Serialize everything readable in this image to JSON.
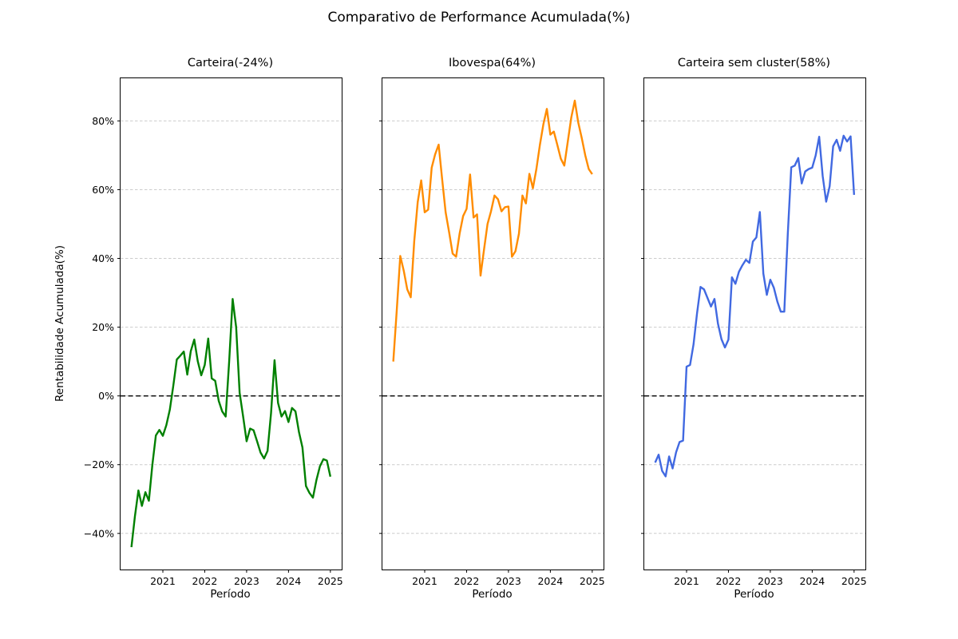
{
  "figure": {
    "title": "Comparativo de Performance Acumulada(%)",
    "ylabel": "Rentabilidade Acumulada(%)",
    "xlabel": "Período",
    "background_color": "#ffffff",
    "gridline_color": "#cccccc",
    "zero_line_color": "#000000"
  },
  "chart_data": {
    "type": "line",
    "layout": "3 horizontal subplots, shared y-axis",
    "x_frequency": "monthly",
    "x_start": "2020-04",
    "x_end": "2025-01",
    "x_tick_labels": [
      "2021",
      "2022",
      "2023",
      "2024",
      "2025"
    ],
    "x_ticks_years": [
      2021,
      2022,
      2023,
      2024,
      2025
    ],
    "y_tick_labels": [
      "80%",
      "60%",
      "40%",
      "20%",
      "0%",
      "−20%",
      "−40%"
    ],
    "y_ticks": [
      80,
      60,
      40,
      20,
      0,
      -20,
      -40
    ],
    "ylim": [
      -50.5,
      92.4
    ],
    "xlim_years": [
      2019.99,
      2025.27
    ],
    "x_start_year_frac": 2020.25,
    "grid": true,
    "zero_line": "black dashed horizontal line at 0%",
    "series": [
      {
        "name": "Carteira",
        "subplot_title": "Carteira(-24%)",
        "final_return_pct": -24,
        "color": "#008000",
        "values": [
          -44,
          -35,
          -27.5,
          -32,
          -28,
          -30.5,
          -20,
          -11.5,
          -9.9,
          -11.6,
          -8.5,
          -4,
          3,
          10.6,
          11.7,
          12.9,
          6.2,
          13,
          16.4,
          10.1,
          6,
          9,
          16.7,
          5.1,
          4.4,
          -1.4,
          -4.5,
          -6,
          10,
          28.2,
          20,
          0.9,
          -6,
          -13.2,
          -9.5,
          -10,
          -13.2,
          -16.5,
          -18.2,
          -16,
          -5,
          10.4,
          -2,
          -6,
          -4.4,
          -7.6,
          -3.5,
          -4.5,
          -10.5,
          -15,
          -26.2,
          -28.2,
          -29.6,
          -24.5,
          -20.5,
          -18.4,
          -18.8,
          -23.5
        ]
      },
      {
        "name": "Ibovespa",
        "subplot_title": "Ibovespa(64%)",
        "final_return_pct": 64,
        "color": "#ff8c00",
        "values": [
          10,
          25,
          40.7,
          36.4,
          31,
          28.7,
          45,
          56.4,
          62.7,
          53.4,
          54.2,
          66.4,
          70.3,
          73.1,
          63,
          53.4,
          47.6,
          41.4,
          40.5,
          47.2,
          52.3,
          54.4,
          64.4,
          51.9,
          52.8,
          35,
          42.6,
          50,
          53.7,
          58.3,
          57.2,
          53.7,
          54.9,
          55.1,
          40.5,
          42.1,
          47.2,
          58.3,
          56,
          64.6,
          60.4,
          66,
          73,
          79,
          83.5,
          76,
          76.9,
          73,
          69,
          67,
          74,
          81,
          85.9,
          79.5,
          75,
          70,
          66,
          64.5
        ]
      },
      {
        "name": "Carteira sem cluster",
        "subplot_title": "Carteira sem cluster(58%)",
        "final_return_pct": 58,
        "color": "#4169e1",
        "values": [
          -19.4,
          -17.1,
          -21.8,
          -23.4,
          -17.6,
          -21.1,
          -16.4,
          -13.4,
          -13,
          8.5,
          9,
          15,
          24,
          31.7,
          31,
          28.5,
          26,
          28.2,
          21,
          16.5,
          14.1,
          16.4,
          34.5,
          32.6,
          36.1,
          38,
          39.6,
          38.7,
          44.9,
          46.1,
          53.5,
          35.6,
          29.4,
          33.8,
          31.5,
          27.5,
          24.5,
          24.5,
          47,
          66.5,
          67,
          69.2,
          61.8,
          65.3,
          66,
          66.4,
          70,
          75.4,
          64,
          56.5,
          61,
          72.6,
          74.5,
          71.3,
          75.7,
          74,
          75.5,
          58.5
        ]
      }
    ]
  }
}
